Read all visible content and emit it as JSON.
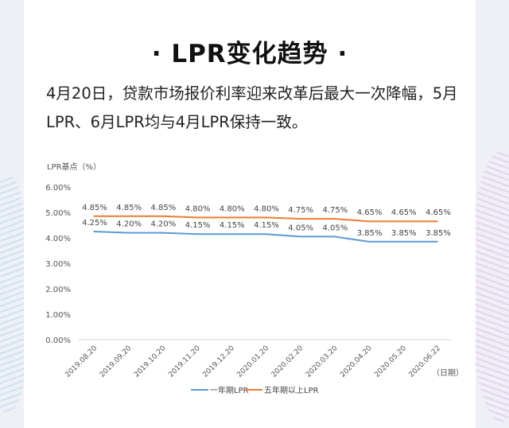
{
  "title": "· LPR变化趋势 ·",
  "description": "4月20日，贷款市场报价利率迎来改革后最大一次降幅，5月LPR、6月LPR均与4月LPR保持一致。",
  "chart_data": {
    "type": "line",
    "ylabel": "LPR基点（%）",
    "xlabel": "（日期）",
    "ylim": [
      0,
      6
    ],
    "y_ticks": [
      "0.00%",
      "1.00%",
      "2.00%",
      "3.00%",
      "4.00%",
      "5.00%",
      "6.00%"
    ],
    "categories": [
      "2019.08.20",
      "2019.09.20",
      "2019.10.20",
      "2019.11.20",
      "2019.12.20",
      "2020.01.20",
      "2020.02.20",
      "2020.03.20",
      "2020.04.20",
      "2020.05.20",
      "2020.06.22"
    ],
    "series": [
      {
        "name": "一年期LPR",
        "color": "#5b9bd5",
        "values": [
          4.25,
          4.2,
          4.2,
          4.15,
          4.15,
          4.15,
          4.05,
          4.05,
          3.85,
          3.85,
          3.85
        ],
        "labels": [
          "4.25%",
          "4.20%",
          "4.20%",
          "4.15%",
          "4.15%",
          "4.15%",
          "4.05%",
          "4.05%",
          "3.85%",
          "3.85%",
          "3.85%"
        ]
      },
      {
        "name": "五年期以上LPR",
        "color": "#ed7d31",
        "values": [
          4.85,
          4.85,
          4.85,
          4.8,
          4.8,
          4.8,
          4.75,
          4.75,
          4.65,
          4.65,
          4.65
        ],
        "labels": [
          "4.85%",
          "4.85%",
          "4.85%",
          "4.80%",
          "4.80%",
          "4.80%",
          "4.75%",
          "4.75%",
          "4.65%",
          "4.65%",
          "4.65%"
        ]
      }
    ],
    "legend_position": "bottom",
    "grid": false
  }
}
